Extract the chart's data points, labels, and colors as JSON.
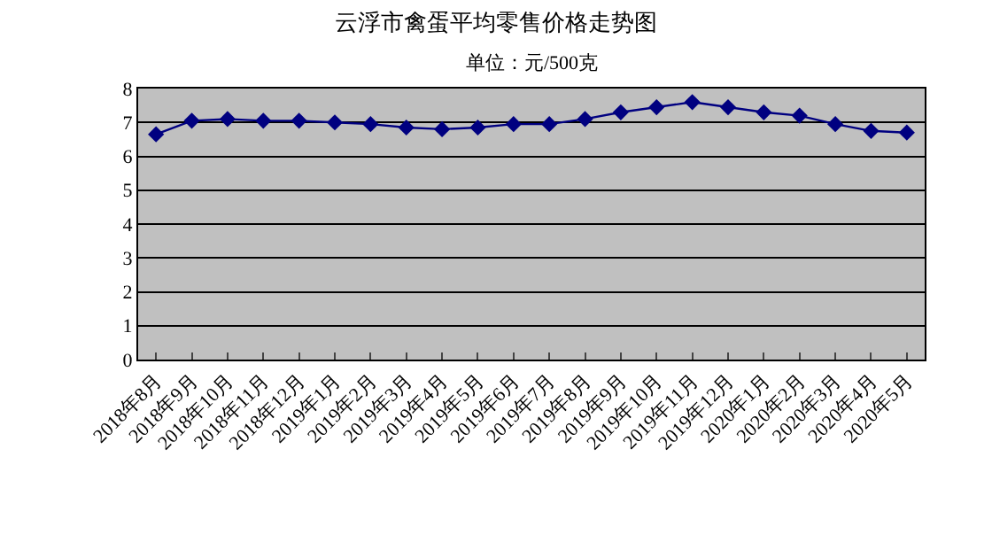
{
  "chart_data": {
    "type": "line",
    "title": "云浮市禽蛋平均零售价格走势图",
    "subtitle": "单位：元/500克",
    "categories": [
      "2018年8月",
      "2018年9月",
      "2018年10月",
      "2018年11月",
      "2018年12月",
      "2019年1月",
      "2019年2月",
      "2019年3月",
      "2019年4月",
      "2019年5月",
      "2019年6月",
      "2019年7月",
      "2019年8月",
      "2019年9月",
      "2019年10月",
      "2019年11月",
      "2019年12月",
      "2020年1月",
      "2020年2月",
      "2020年3月",
      "2020年4月",
      "2020年5月"
    ],
    "series": [
      {
        "color": "#000080",
        "values": [
          6.65,
          7.05,
          7.1,
          7.05,
          7.05,
          7.0,
          6.95,
          6.85,
          6.8,
          6.85,
          6.95,
          6.95,
          7.1,
          7.3,
          7.45,
          7.6,
          7.45,
          7.3,
          7.2,
          6.95,
          6.75,
          6.7
        ]
      }
    ],
    "ylim": [
      0,
      8
    ],
    "yticks": [
      0,
      1,
      2,
      3,
      4,
      5,
      6,
      7,
      8
    ],
    "grid": "y",
    "marker": "diamond",
    "line_style": "solid"
  }
}
